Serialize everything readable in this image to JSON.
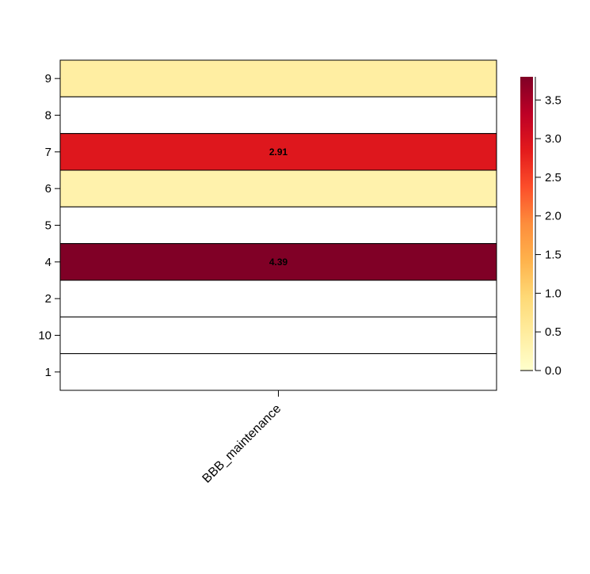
{
  "chart_data": {
    "type": "heatmap",
    "title": "",
    "xlabel": "",
    "ylabel": "",
    "columns": [
      "BBB_maintenance"
    ],
    "rows": [
      "9",
      "8",
      "7",
      "6",
      "5",
      "4",
      "2",
      "10",
      "1"
    ],
    "values": [
      0.45,
      0,
      2.91,
      0.35,
      0,
      4.39,
      0,
      0,
      0
    ],
    "cell_labels": [
      "",
      "",
      "2.91",
      "",
      "",
      "4.39",
      "",
      "",
      ""
    ],
    "colorbar": {
      "min": 0,
      "max": 3.8,
      "ticks": [
        0.0,
        0.5,
        1.0,
        1.5,
        2.0,
        2.5,
        3.0,
        3.5
      ],
      "tick_labels": [
        "0.0",
        "0.5",
        "1.0",
        "1.5",
        "2.0",
        "2.5",
        "3.0",
        "3.5"
      ],
      "colors": [
        "#ffffcc",
        "#ffeda0",
        "#fed976",
        "#feb24c",
        "#fd8d3c",
        "#fc4e2a",
        "#e31a1c",
        "#bd0026",
        "#800026"
      ]
    },
    "grid": true,
    "legend": "right"
  }
}
